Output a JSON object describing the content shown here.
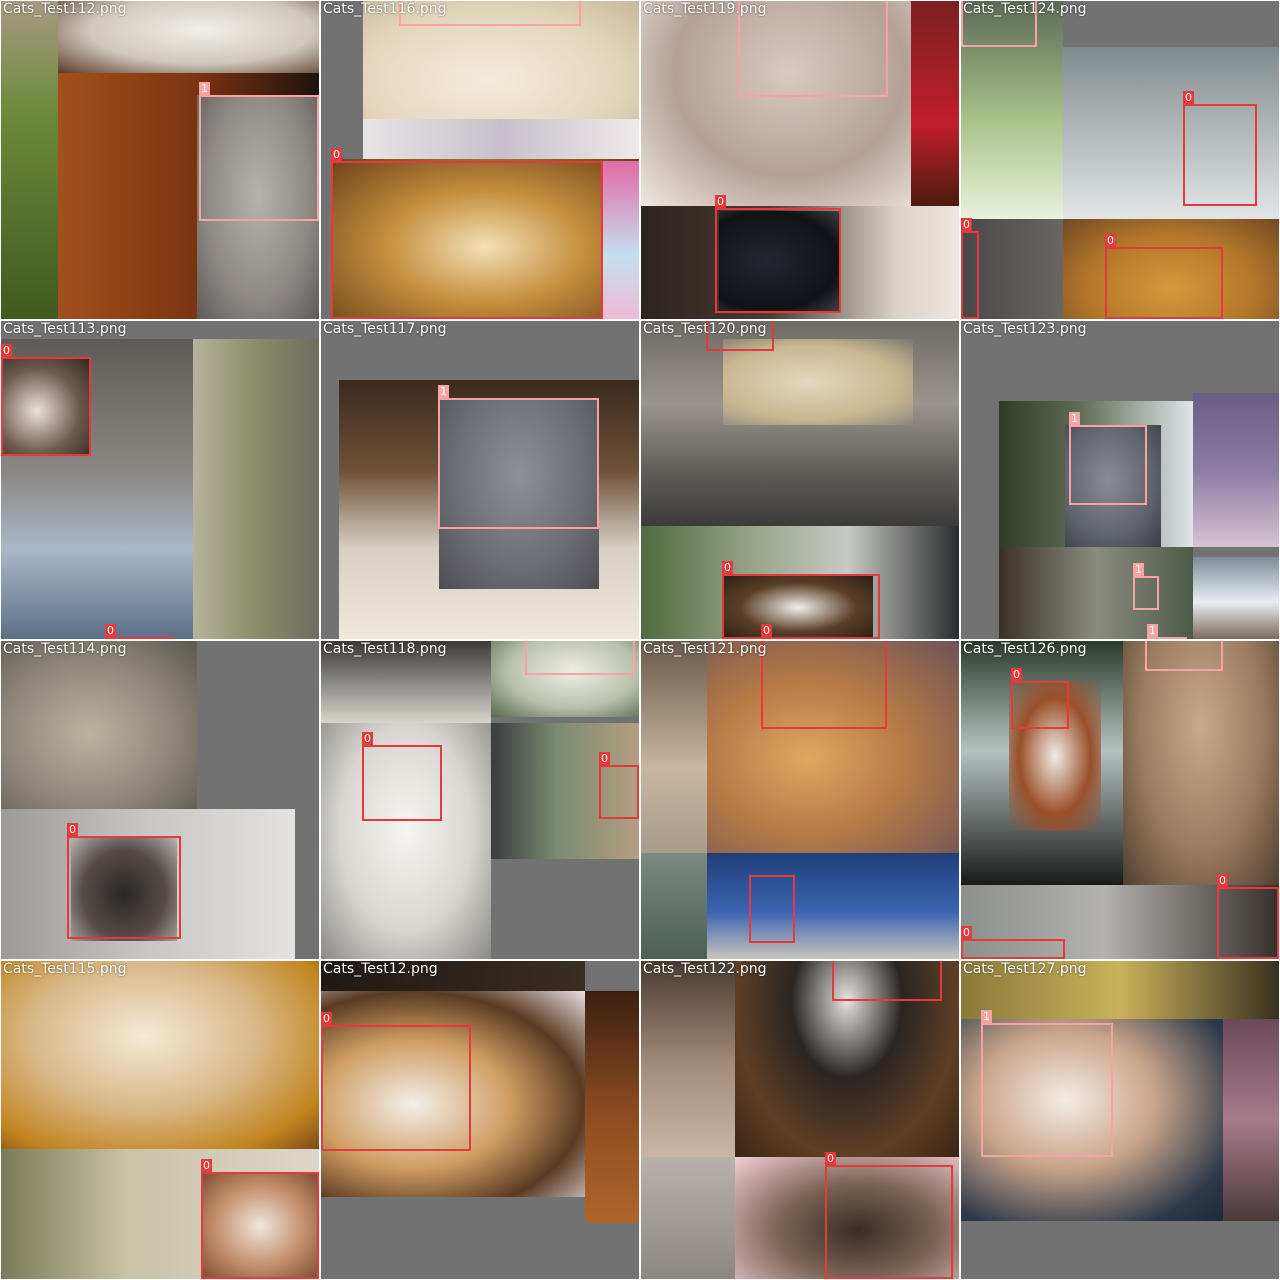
{
  "colors": {
    "class0": "#e5393c",
    "class1": "#f5a3a3",
    "pad": "#727272"
  },
  "tiles": [
    {
      "caption": "Cats_Test112.png",
      "labels": [
        "1"
      ]
    },
    {
      "caption": "Cats_Test116.png",
      "labels": [
        "0"
      ]
    },
    {
      "caption": "Cats_Test119.png",
      "labels": [
        "0"
      ]
    },
    {
      "caption": "Cats_Test124.png",
      "labels": [
        "0",
        "0",
        "0"
      ]
    },
    {
      "caption": "Cats_Test113.png",
      "labels": [
        "0",
        "0"
      ]
    },
    {
      "caption": "Cats_Test117.png",
      "labels": [
        "1"
      ]
    },
    {
      "caption": "Cats_Test120.png",
      "labels": [
        "0",
        "0",
        "0"
      ]
    },
    {
      "caption": "Cats_Test123.png",
      "labels": [
        "1",
        "1",
        "1"
      ]
    },
    {
      "caption": "Cats_Test114.png",
      "labels": [
        "0"
      ]
    },
    {
      "caption": "Cats_Test118.png",
      "labels": [
        "1",
        "0",
        "0"
      ]
    },
    {
      "caption": "Cats_Test121.png",
      "labels": [
        "0"
      ]
    },
    {
      "caption": "Cats_Test126.png",
      "labels": [
        "0",
        "0",
        "0"
      ]
    },
    {
      "caption": "Cats_Test115.png",
      "labels": [
        "0"
      ]
    },
    {
      "caption": "Cats_Test12.png",
      "labels": [
        "0"
      ]
    },
    {
      "caption": "Cats_Test122.png",
      "labels": [
        "0",
        "0"
      ]
    },
    {
      "caption": "Cats_Test127.png",
      "labels": [
        "1"
      ]
    }
  ]
}
